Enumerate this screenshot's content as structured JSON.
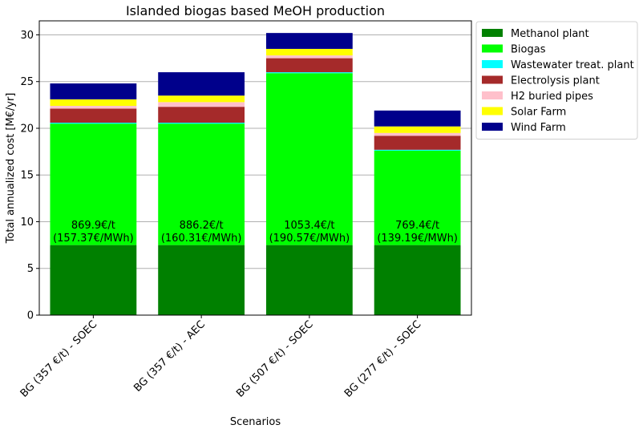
{
  "chart_data": {
    "type": "bar",
    "stacked": true,
    "title": "Islanded biogas based MeOH production",
    "xlabel": "Scenarios",
    "ylabel": "Total annualized cost [M€/yr]",
    "ylim": [
      0,
      31.5
    ],
    "yticks": [
      0,
      5,
      10,
      15,
      20,
      25,
      30
    ],
    "grid": "y",
    "legend_position": "outside-top-right",
    "categories": [
      "BG (357 €/t) - SOEC",
      "BG (357 €/t) - AEC",
      "BG (507 €/t) - SOEC",
      "BG (277 €/t) - SOEC"
    ],
    "series": [
      {
        "name": "Methanol plant",
        "color": "#008000",
        "values": [
          7.5,
          7.5,
          7.5,
          7.5
        ]
      },
      {
        "name": "Biogas",
        "color": "#00ff00",
        "values": [
          13.0,
          13.0,
          18.4,
          10.1
        ]
      },
      {
        "name": "Wastewater treat. plant",
        "color": "#00ffff",
        "values": [
          0.1,
          0.1,
          0.1,
          0.1
        ]
      },
      {
        "name": "Electrolysis plant",
        "color": "#a52a2a",
        "values": [
          1.5,
          1.7,
          1.5,
          1.5
        ]
      },
      {
        "name": "H2 buried pipes",
        "color": "#ffc0cb",
        "values": [
          0.3,
          0.5,
          0.3,
          0.3
        ]
      },
      {
        "name": "Solar Farm",
        "color": "#ffff00",
        "values": [
          0.7,
          0.7,
          0.7,
          0.7
        ]
      },
      {
        "name": "Wind Farm",
        "color": "#00008b",
        "values": [
          1.7,
          2.5,
          1.7,
          1.7
        ]
      }
    ],
    "bar_labels": [
      {
        "line1": "869.9€/t",
        "line2": "(157.37€/MWh)"
      },
      {
        "line1": "886.2€/t",
        "line2": "(160.31€/MWh)"
      },
      {
        "line1": "1053.4€/t",
        "line2": "(190.57€/MWh)"
      },
      {
        "line1": "769.4€/t",
        "line2": "(139.19€/MWh)"
      }
    ],
    "bar_label_y": 8.0
  }
}
